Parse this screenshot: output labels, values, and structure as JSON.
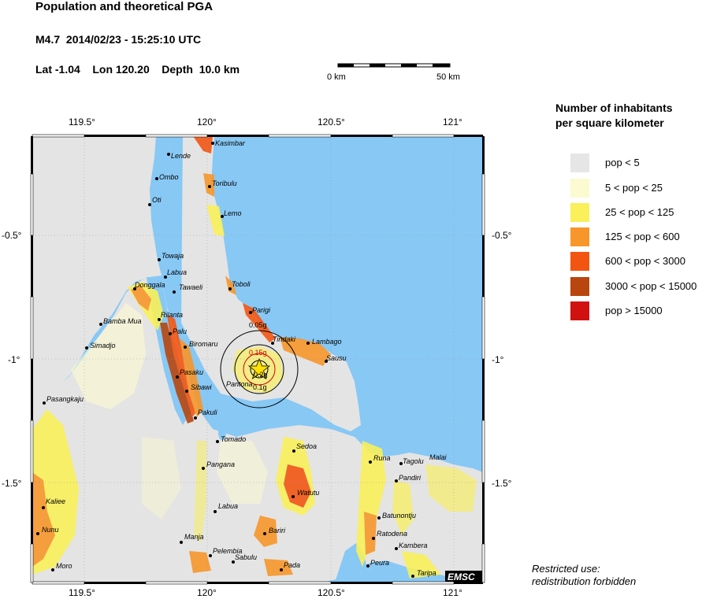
{
  "header": {
    "title": "Population and theoretical PGA",
    "event": "M4.7  2014/02/23 - 15:25:10 UTC",
    "location": "Lat -1.04    Lon 120.20    Depth  10.0 km"
  },
  "scale_bar": {
    "left_label": "0 km",
    "right_label": "50 km"
  },
  "axes": {
    "x_ticks": [
      "119.5°",
      "120°",
      "120.5°",
      "121°"
    ],
    "y_ticks": [
      "-0.5°",
      "-1°",
      "-1.5°"
    ]
  },
  "colors": {
    "sea": "#87c8f5",
    "land": "#e4e4e4",
    "epicenter": "#ffe000",
    "pga_text": "#d40000"
  },
  "legend": {
    "title_line1": "Number of inhabitants",
    "title_line2": "per square kilometer",
    "items": [
      {
        "label": "pop < 5",
        "color": "#e6e6e6"
      },
      {
        "label": "5 < pop < 25",
        "color": "#fbfad0"
      },
      {
        "label": "25 < pop < 125",
        "color": "#f9f05a"
      },
      {
        "label": "125 < pop < 600",
        "color": "#f7962a"
      },
      {
        "label": "600 < pop < 3000",
        "color": "#f25512"
      },
      {
        "label": "3000 < pop < 15000",
        "color": "#b8460e"
      },
      {
        "label": "pop > 15000",
        "color": "#d11010"
      }
    ]
  },
  "pga_labels": [
    "0.05g",
    "0.15g",
    "0.2g",
    "0.1g"
  ],
  "places": [
    "Kasimbar",
    "Lende",
    "Ombo",
    "Toribulu",
    "Oti",
    "Lemo",
    "Towaja",
    "Labua",
    "Tawaeli",
    "Toboli",
    "Donggala",
    "Parigi",
    "Rilanta",
    "Bamba Mua",
    "Palu",
    "Tindaki",
    "Lambago",
    "Biromaru",
    "Simadjo",
    "Sausu",
    "Pasaku",
    "Sibawi",
    "Pantona",
    "Pasangkaju",
    "Pakuli",
    "Tomado",
    "Sedoa",
    "Malai",
    "Runa",
    "Tagolu",
    "Pangana",
    "Pandiri",
    "Watutu",
    "Kaliee",
    "Labua",
    "Batunontju",
    "Nunu",
    "Bariri",
    "Ratodena",
    "Manja",
    "Kambera",
    "Pelembia",
    "Sabulu",
    "Peura",
    "Moro",
    "Pada",
    "Taripa"
  ],
  "badge": "EMSC",
  "restricted": {
    "line1": "Restricted use:",
    "line2": "redistribution forbidden"
  }
}
